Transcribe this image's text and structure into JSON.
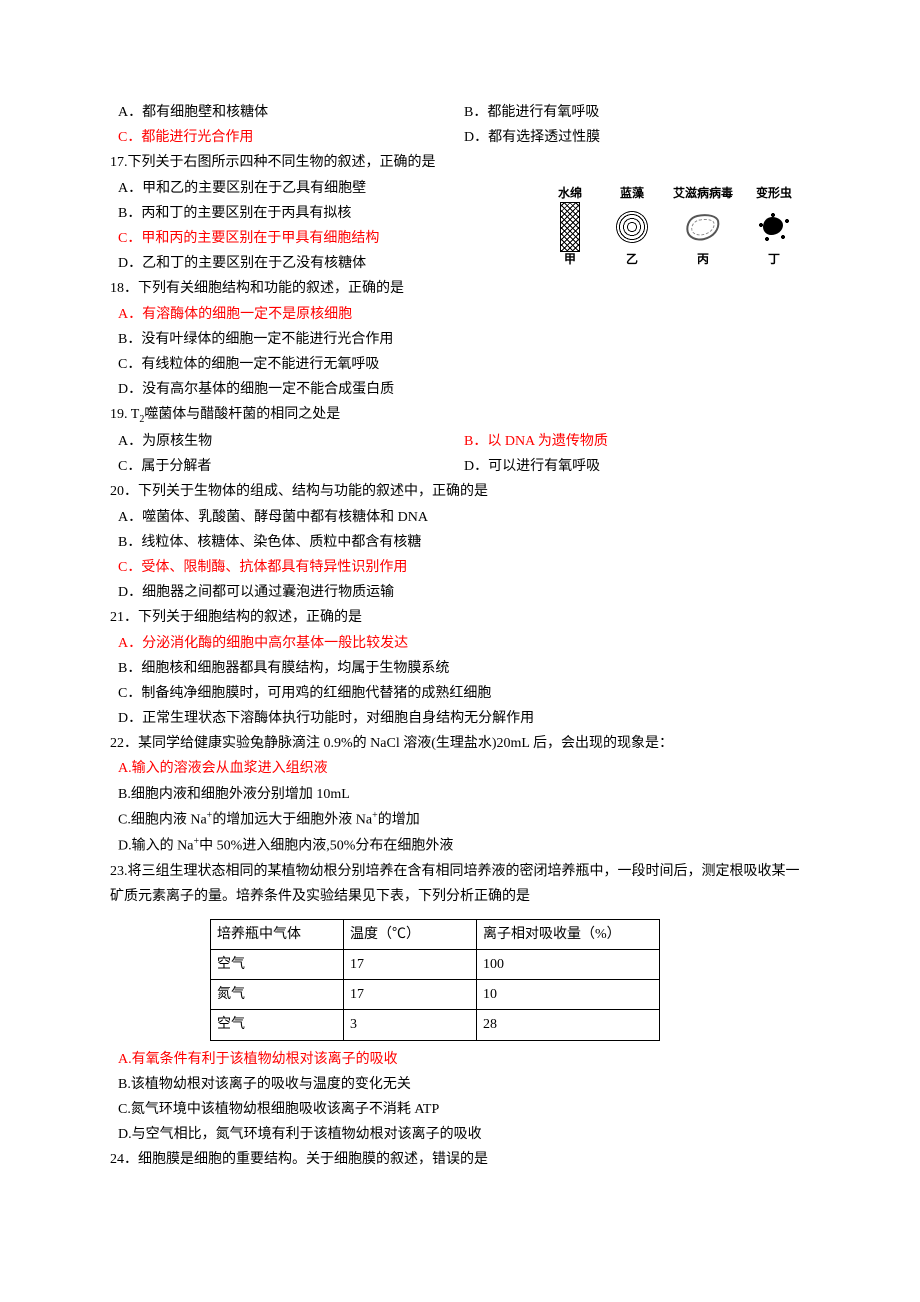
{
  "q16": {
    "A": "A．都有细胞壁和核糖体",
    "B": "B．都能进行有氧呼吸",
    "C": "C．都能进行光合作用",
    "D": "D．都有选择透过性膜"
  },
  "q17": {
    "stem": "17.下列关于右图所示四种不同生物的叙述，正确的是",
    "A": "A．甲和乙的主要区别在于乙具有细胞壁",
    "B": "B．丙和丁的主要区别在于丙具有拟核",
    "C": "C．甲和丙的主要区别在于甲具有细胞结构",
    "D": "D．乙和丁的主要区别在于乙没有核糖体",
    "fig": {
      "labels_top": [
        "水绵",
        "蓝藻",
        "艾滋病病毒",
        "变形虫"
      ],
      "labels_bottom": [
        "甲",
        "乙",
        "丙",
        "丁"
      ]
    }
  },
  "q18": {
    "stem": "18．下列有关细胞结构和功能的叙述，正确的是",
    "A": "A．有溶酶体的细胞一定不是原核细胞",
    "B": "B．没有叶绿体的细胞一定不能进行光合作用",
    "C": "C．有线粒体的细胞一定不能进行无氧呼吸",
    "D": "D．没有高尔基体的细胞一定不能合成蛋白质"
  },
  "q19": {
    "stem_prefix": "19.",
    "stem_sub": "T",
    "stem_subscript": "2",
    "stem_rest": "噬菌体与醋酸杆菌的相同之处是",
    "A": "A．为原核生物",
    "B": "B．以 DNA 为遗传物质",
    "C": "C．属于分解者",
    "D": "D．可以进行有氧呼吸"
  },
  "q20": {
    "stem": "20．下列关于生物体的组成、结构与功能的叙述中，正确的是",
    "A": "A．噬菌体、乳酸菌、酵母菌中都有核糖体和 DNA",
    "B": "B．线粒体、核糖体、染色体、质粒中都含有核糖",
    "C": "C．受体、限制酶、抗体都具有特异性识别作用",
    "D": "D．细胞器之间都可以通过囊泡进行物质运输"
  },
  "q21": {
    "stem": "21．下列关于细胞结构的叙述，正确的是",
    "A": "A．分泌消化酶的细胞中高尔基体一般比较发达",
    "B": "B．细胞核和细胞器都具有膜结构，均属于生物膜系统",
    "C": "C．制备纯净细胞膜时，可用鸡的红细胞代替猪的成熟红细胞",
    "D": "D．正常生理状态下溶酶体执行功能时，对细胞自身结构无分解作用"
  },
  "q22": {
    "stem": "22．某同学给健康实验兔静脉滴注 0.9%的 NaCl 溶液(生理盐水)20mL 后，会出现的现象是：",
    "A": "A.输入的溶液会从血浆进入组织液",
    "B": "B.细胞内液和细胞外液分别增加 10mL",
    "C_pre": "C.细胞内液 Na",
    "C_mid": "的增加远大于细胞外液 Na",
    "C_post": "的增加",
    "D_pre": "D.输入的 Na",
    "D_post": "中 50%进入细胞内液,50%分布在细胞外液"
  },
  "q23": {
    "stem": "23.将三组生理状态相同的某植物幼根分别培养在含有相同培养液的密闭培养瓶中，一段时间后，测定根吸收某一矿质元素离子的量。培养条件及实验结果见下表，下列分析正确的是",
    "table": {
      "headers": [
        "培养瓶中气体",
        "温度（℃）",
        "离子相对吸收量（%）"
      ],
      "rows": [
        [
          "空气",
          "17",
          "100"
        ],
        [
          "氮气",
          "17",
          "10"
        ],
        [
          "空气",
          "3",
          "28"
        ]
      ]
    },
    "A": "A.有氧条件有利于该植物幼根对该离子的吸收",
    "B": "B.该植物幼根对该离子的吸收与温度的变化无关",
    "C": "C.氮气环境中该植物幼根细胞吸收该离子不消耗 ATP",
    "D": "D.与空气相比，氮气环境有利于该植物幼根对该离子的吸收"
  },
  "q24": {
    "stem": "24．细胞膜是细胞的重要结构。关于细胞膜的叙述，错误的是"
  }
}
